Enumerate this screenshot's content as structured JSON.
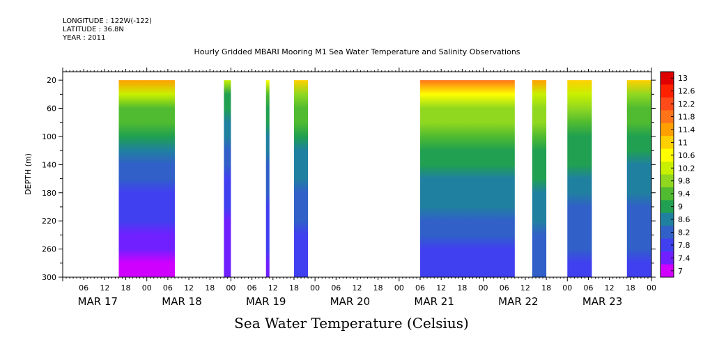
{
  "header": {
    "longitude": "LONGITUDE : 122W(-122)",
    "latitude": "LATITUDE : 36.8N",
    "year": "YEAR : 2011"
  },
  "chart_data": {
    "type": "heatmap",
    "title": "Hourly Gridded MBARI Mooring M1 Sea Water Temperature and Salinity Observations",
    "ylabel": "DEPTH (m)",
    "xlabel": "",
    "caption": "Sea Water Temperature (Celsius)",
    "y_range": [
      300,
      8
    ],
    "y_ticks": [
      20,
      60,
      100,
      140,
      180,
      220,
      260,
      300
    ],
    "x_hours_range": [
      0,
      168
    ],
    "x_hour_ticks": [
      "06",
      "12",
      "18",
      "00",
      "06",
      "12",
      "18",
      "00",
      "06",
      "12",
      "18",
      "00",
      "06",
      "12",
      "18",
      "00",
      "06",
      "12",
      "18",
      "00",
      "06",
      "12",
      "18",
      "00",
      "06",
      "12",
      "18",
      "00"
    ],
    "x_day_labels": [
      "MAR 17",
      "MAR 18",
      "MAR 19",
      "MAR 20",
      "MAR 21",
      "MAR 22",
      "MAR 23"
    ],
    "colorbar": {
      "levels": [
        "13",
        "12.6",
        "12.2",
        "11.8",
        "11.4",
        "11",
        "10.6",
        "10.2",
        "9.8",
        "9.4",
        "9",
        "8.6",
        "8.2",
        "7.8",
        "7.4",
        "7"
      ],
      "colors": [
        "#e00000",
        "#ff2000",
        "#ff4a1a",
        "#ff7418",
        "#ffa000",
        "#ffd000",
        "#ffff00",
        "#c8f000",
        "#90d820",
        "#50bb30",
        "#20a050",
        "#2080a0",
        "#3060c8",
        "#4040f0",
        "#7020ff",
        "#d000ff"
      ]
    },
    "segments": [
      {
        "start_hour": 16,
        "end_hour": 32,
        "surface_temp": 11.6,
        "deep_temp": 7.2
      },
      {
        "start_hour": 46,
        "end_hour": 48,
        "surface_temp": 10.2,
        "deep_temp": 7.4
      },
      {
        "start_hour": 58,
        "end_hour": 59,
        "surface_temp": 10.6,
        "deep_temp": 7.6
      },
      {
        "start_hour": 66,
        "end_hour": 70,
        "surface_temp": 11.0,
        "deep_temp": 7.8
      },
      {
        "start_hour": 102,
        "end_hour": 129,
        "surface_temp": 11.8,
        "deep_temp": 7.9
      },
      {
        "start_hour": 134,
        "end_hour": 138,
        "surface_temp": 11.4,
        "deep_temp": 8.2
      },
      {
        "start_hour": 144,
        "end_hour": 151,
        "surface_temp": 11.2,
        "deep_temp": 8.0
      },
      {
        "start_hour": 161,
        "end_hour": 168,
        "surface_temp": 11.0,
        "deep_temp": 8.0
      }
    ]
  }
}
